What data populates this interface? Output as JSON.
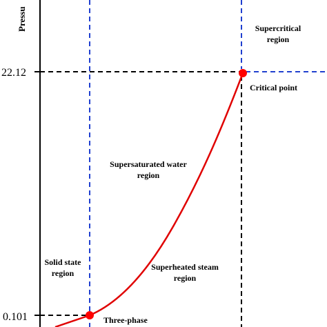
{
  "diagram": {
    "axis_y_label": "Pressu",
    "y_ticks": [
      "22.12",
      "0.101"
    ],
    "regions": {
      "supercritical": [
        "Supercritical",
        "region"
      ],
      "supersaturated": [
        "Supersaturated water",
        "region"
      ],
      "solid": [
        "Solid state",
        "region"
      ],
      "superheated": [
        "Superheated steam",
        "region"
      ]
    },
    "points": {
      "critical": "Critical point",
      "triple": "Three-phase"
    },
    "colors": {
      "curve": "#e00000",
      "point": "#ff0000",
      "blue_dash": "#1f3fcf",
      "black_dash": "#000000",
      "axis": "#000000"
    }
  }
}
